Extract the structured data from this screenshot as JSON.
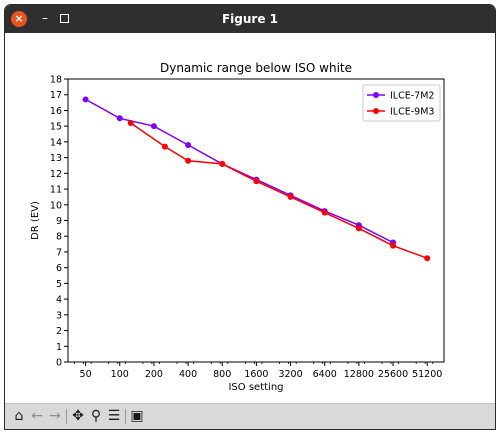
{
  "window": {
    "title": "Figure 1"
  },
  "toolbar": {
    "tools": [
      {
        "name": "home-icon",
        "glyph": "⌂"
      },
      {
        "name": "back-icon",
        "glyph": "←"
      },
      {
        "name": "forward-icon",
        "glyph": "→"
      },
      {
        "name": "pan-icon",
        "glyph": "✥"
      },
      {
        "name": "zoom-icon",
        "glyph": "🔍"
      },
      {
        "name": "configure-subplots-icon",
        "glyph": "☰"
      },
      {
        "name": "save-icon",
        "glyph": "💾"
      }
    ]
  },
  "chart_data": {
    "type": "line",
    "title": "Dynamic range below ISO white",
    "xlabel": "ISO setting",
    "ylabel": "DR (EV)",
    "xscale": "log2",
    "xlim": [
      35,
      72000
    ],
    "ylim": [
      0,
      18
    ],
    "xticks": [
      50,
      100,
      200,
      400,
      800,
      1600,
      3200,
      6400,
      12800,
      25600,
      51200
    ],
    "xtick_labels": [
      "50",
      "100",
      "200",
      "400",
      "800",
      "1600",
      "3200",
      "6400",
      "12800",
      "25600",
      "51200"
    ],
    "yticks": [
      0,
      1,
      2,
      3,
      4,
      5,
      6,
      7,
      8,
      9,
      10,
      11,
      12,
      13,
      14,
      15,
      16,
      17,
      18
    ],
    "legend_position": "upper right",
    "grid": false,
    "series": [
      {
        "name": "ILCE-7M2",
        "color": "#7f00ff",
        "x": [
          50,
          100,
          200,
          400,
          800,
          1600,
          3200,
          6400,
          12800,
          25600
        ],
        "y": [
          16.7,
          15.5,
          15.0,
          13.8,
          12.6,
          11.6,
          10.6,
          9.6,
          8.7,
          7.6
        ]
      },
      {
        "name": "ILCE-9M3",
        "color": "#ff0000",
        "x": [
          125,
          250,
          400,
          800,
          1600,
          3200,
          6400,
          12800,
          25600,
          51200
        ],
        "y": [
          15.2,
          13.7,
          12.8,
          12.6,
          11.5,
          10.5,
          9.5,
          8.5,
          7.4,
          6.6
        ]
      }
    ]
  }
}
